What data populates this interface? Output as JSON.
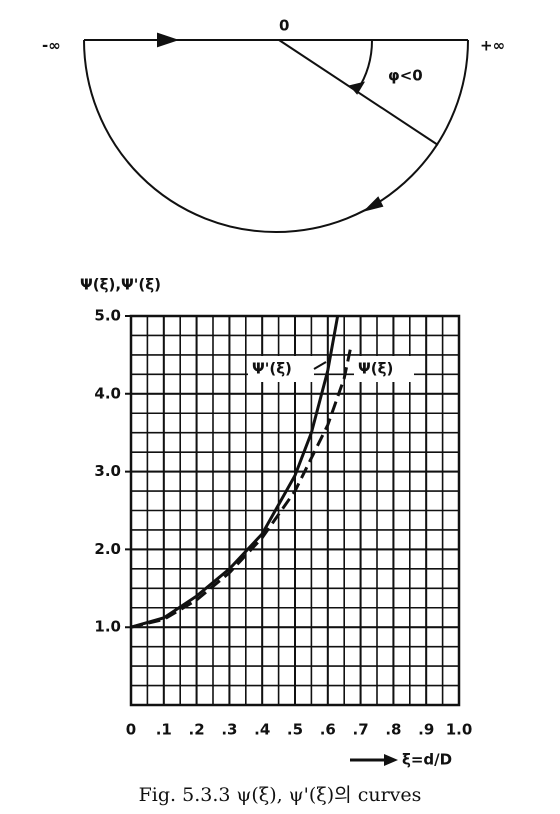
{
  "diagram": {
    "left_label": "-∞",
    "origin_label": "0",
    "right_label": "+∞",
    "angle_label": "φ<0"
  },
  "chart_data": {
    "type": "line",
    "ylabel": "Ψ(ξ),Ψ'(ξ)",
    "xlabel": "ξ=d/D",
    "xlim": [
      0,
      1
    ],
    "ylim": [
      0,
      5
    ],
    "xticks": [
      0,
      {
        "value": 0.1,
        "label": ".1"
      },
      {
        "value": 0.2,
        "label": ".2"
      },
      {
        "value": 0.3,
        "label": ".3"
      },
      {
        "value": 0.4,
        "label": ".4"
      },
      {
        "value": 0.5,
        "label": ".5"
      },
      {
        "value": 0.6,
        "label": ".6"
      },
      {
        "value": 0.7,
        "label": ".7"
      },
      {
        "value": 0.8,
        "label": ".8"
      },
      {
        "value": 0.9,
        "label": ".9"
      },
      {
        "value": 1,
        "label": "1.0"
      }
    ],
    "yticks": [
      {
        "value": 1,
        "label": "1.0"
      },
      {
        "value": 2,
        "label": "2.0"
      },
      {
        "value": 3,
        "label": "3.0"
      },
      {
        "value": 4,
        "label": "4.0"
      },
      {
        "value": 5,
        "label": "5.0"
      }
    ],
    "grid": true,
    "series": [
      {
        "name": "Ψ'(ξ)",
        "color": "#111111",
        "style": "solid",
        "x": [
          0,
          0.1,
          0.2,
          0.3,
          0.4,
          0.5,
          0.55,
          0.6,
          0.63
        ],
        "values": [
          1.0,
          1.12,
          1.4,
          1.75,
          2.2,
          2.95,
          3.5,
          4.3,
          5.0
        ]
      },
      {
        "name": "Ψ(ξ)",
        "color": "#111111",
        "style": "dashed",
        "x": [
          0,
          0.1,
          0.2,
          0.3,
          0.4,
          0.5,
          0.6,
          0.65,
          0.67
        ],
        "values": [
          1.0,
          1.1,
          1.35,
          1.7,
          2.15,
          2.75,
          3.6,
          4.2,
          4.6
        ]
      }
    ]
  },
  "caption": "Fig. 5.3.3  ψ(ξ), ψ'(ξ)의 curves"
}
